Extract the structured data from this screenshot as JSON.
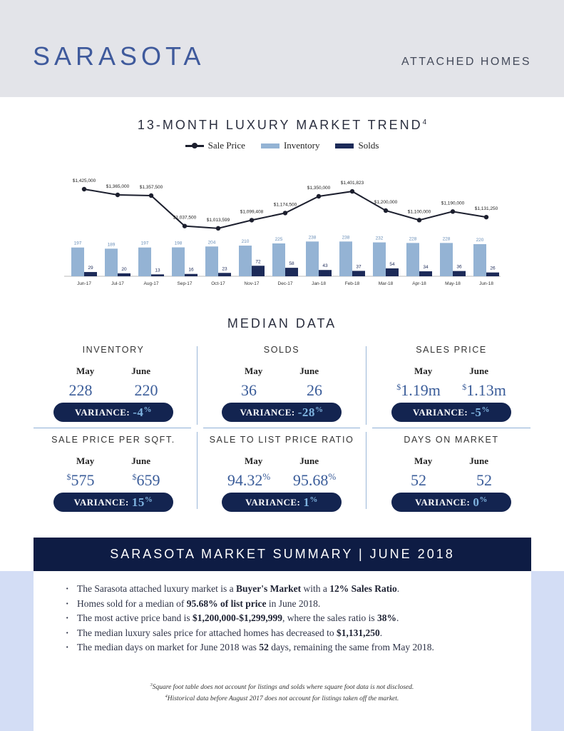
{
  "header": {
    "city": "SARASOTA",
    "subtitle": "ATTACHED HOMES"
  },
  "trend": {
    "title": "13-MONTH LUXURY MARKET TREND",
    "title_sup": "4",
    "legend": {
      "sale_price": "Sale Price",
      "inventory": "Inventory",
      "solds": "Solds"
    }
  },
  "colors": {
    "inventory": "#94b3d4",
    "solds": "#1c2a58",
    "line": "#1c1f2e",
    "accent": "#3f5a9c",
    "dark_navy": "#0e1c44",
    "band": "#d3ddf5"
  },
  "chart_data": {
    "type": "bar",
    "categories": [
      "Jun-17",
      "Jul-17",
      "Aug-17",
      "Sep-17",
      "Oct-17",
      "Nov-17",
      "Dec-17",
      "Jan-18",
      "Feb-18",
      "Mar-18",
      "Apr-18",
      "May-18",
      "Jun-18"
    ],
    "series": [
      {
        "name": "Inventory",
        "type": "bar",
        "values": [
          197,
          189,
          197,
          198,
          204,
          210,
          225,
          238,
          238,
          232,
          228,
          228,
          220
        ]
      },
      {
        "name": "Solds",
        "type": "bar",
        "values": [
          29,
          20,
          13,
          16,
          23,
          72,
          58,
          43,
          37,
          54,
          34,
          36,
          26
        ]
      },
      {
        "name": "Sale Price",
        "type": "line",
        "values": [
          1425000,
          1365000,
          1357500,
          1037500,
          1013599,
          1099408,
          1174500,
          1350000,
          1401823,
          1200000,
          1100000,
          1190000,
          1131250
        ],
        "labels": [
          "$1,425,000",
          "$1,365,000",
          "$1,357,500",
          "$1,037,500",
          "$1,013,599",
          "$1,099,408",
          "$1,174,500",
          "$1,350,000",
          "$1,401,823",
          "$1,200,000",
          "$1,100,000",
          "$1,190,000",
          "$1,131,250"
        ]
      }
    ],
    "legend": "top-center",
    "grid": false
  },
  "median": {
    "title": "MEDIAN DATA",
    "metrics": [
      {
        "title": "INVENTORY",
        "m1": "May",
        "m2": "June",
        "v1_pre": "",
        "v1": "228",
        "v1_post": "",
        "v2_pre": "",
        "v2": "220",
        "v2_post": "",
        "variance_label": "VARIANCE:",
        "variance_value": "-4",
        "variance_unit": "%"
      },
      {
        "title": "SOLDS",
        "m1": "May",
        "m2": "June",
        "v1_pre": "",
        "v1": "36",
        "v1_post": "",
        "v2_pre": "",
        "v2": "26",
        "v2_post": "",
        "variance_label": "VARIANCE:",
        "variance_value": "-28",
        "variance_unit": "%"
      },
      {
        "title": "SALES PRICE",
        "m1": "May",
        "m2": "June",
        "v1_pre": "$",
        "v1": "1.19m",
        "v1_post": "",
        "v2_pre": "$",
        "v2": "1.13m",
        "v2_post": "",
        "variance_label": "VARIANCE:",
        "variance_value": "-5",
        "variance_unit": "%"
      },
      {
        "title": "SALE PRICE PER SQFT.",
        "m1": "May",
        "m2": "June",
        "v1_pre": "$",
        "v1": "575",
        "v1_post": "",
        "v2_pre": "$",
        "v2": "659",
        "v2_post": "",
        "variance_label": "VARIANCE:",
        "variance_value": "15",
        "variance_unit": "%"
      },
      {
        "title": "SALE TO LIST PRICE RATIO",
        "m1": "May",
        "m2": "June",
        "v1_pre": "",
        "v1": "94.32",
        "v1_post": "%",
        "v2_pre": "",
        "v2": "95.68",
        "v2_post": "%",
        "variance_label": "VARIANCE:",
        "variance_value": "1",
        "variance_unit": "%"
      },
      {
        "title": "DAYS ON MARKET",
        "m1": "May",
        "m2": "June",
        "v1_pre": "",
        "v1": "52",
        "v1_post": "",
        "v2_pre": "",
        "v2": "52",
        "v2_post": "",
        "variance_label": "VARIANCE:",
        "variance_value": "0",
        "variance_unit": "%"
      }
    ]
  },
  "summary": {
    "title": "SARASOTA MARKET SUMMARY | JUNE 2018",
    "items": [
      {
        "a": "The Sarasota attached luxury market is a ",
        "b1": "Buyer's Market",
        "c": " with a ",
        "b2": "12% Sales Ratio",
        "d": "."
      },
      {
        "a": "Homes sold for a median of ",
        "b1": "95.68% of list price",
        "c": " in June 2018.",
        "b2": "",
        "d": ""
      },
      {
        "a": "The most active price band is ",
        "b1": "$1,200,000-$1,299,999",
        "c": ", where the sales ratio is ",
        "b2": "38%",
        "d": "."
      },
      {
        "a": "The median luxury sales price for attached homes has decreased to ",
        "b1": "$1,131,250",
        "c": ".",
        "b2": "",
        "d": ""
      },
      {
        "a": "The median days on market for June 2018 was ",
        "b1": "52",
        "c": " days, remaining the same from May 2018.",
        "b2": "",
        "d": ""
      }
    ]
  },
  "footnotes": {
    "n3": "3",
    "f3": "Square foot table does not account for listings and solds where square foot data is not disclosed.",
    "n4": "4",
    "f4": "Historical data before August 2017 does not account for listings taken off the market."
  }
}
